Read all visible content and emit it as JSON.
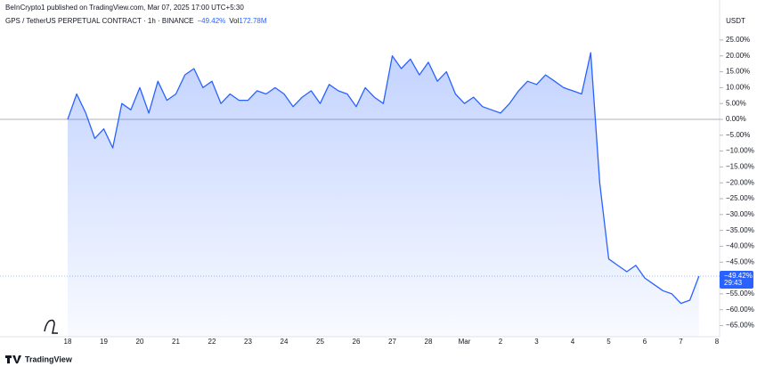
{
  "chart_data": {
    "type": "area",
    "published": "BeInCrypto1 published on TradingView.com, Mar 07, 2025 17:00 UTC+5:30",
    "title": "GPS / TetherUS PERPETUAL CONTRACT · 1h · BINANCE",
    "change_label": "−49.42%",
    "volume_label": "Vol",
    "volume": "172.78M",
    "currency": "USDT",
    "last_value": -49.42,
    "last_label": "−49.42%",
    "countdown": "29:43",
    "brand": "TradingView",
    "color": "#2962ff",
    "categories": [
      "18",
      null,
      null,
      null,
      "19",
      null,
      null,
      null,
      "20",
      null,
      null,
      null,
      "21",
      null,
      null,
      null,
      "22",
      null,
      null,
      null,
      "23",
      null,
      null,
      null,
      "24",
      null,
      null,
      null,
      "25",
      null,
      null,
      null,
      "26",
      null,
      null,
      null,
      "27",
      null,
      null,
      null,
      "28",
      null,
      null,
      null,
      "Mar",
      null,
      null,
      null,
      "2",
      null,
      null,
      null,
      "3",
      null,
      null,
      null,
      "4",
      null,
      null,
      null,
      "5",
      null,
      null,
      null,
      "6",
      null,
      null,
      null,
      "7",
      null,
      null,
      null,
      "8"
    ],
    "values": [
      0,
      8,
      2,
      -6,
      -3,
      -9,
      5,
      3,
      10,
      2,
      12,
      6,
      8,
      14,
      16,
      10,
      12,
      5,
      8,
      6,
      6,
      9,
      8,
      10,
      8,
      4,
      7,
      9,
      5,
      11,
      9,
      8,
      4,
      10,
      7,
      5,
      20,
      16,
      19,
      14,
      18,
      12,
      15,
      8,
      5,
      7,
      4,
      3,
      2,
      5,
      9,
      12,
      11,
      14,
      12,
      10,
      9,
      8,
      21,
      -20,
      -44,
      -46,
      -48,
      -46,
      -50,
      -52,
      -54,
      -55,
      -58,
      -57,
      -49.42,
      null,
      null
    ],
    "ylim": [
      -68.5,
      32
    ],
    "yticks": [
      {
        "value": 25,
        "label": "25.00%"
      },
      {
        "value": 20,
        "label": "20.00%"
      },
      {
        "value": 15,
        "label": "15.00%"
      },
      {
        "value": 10,
        "label": "10.00%"
      },
      {
        "value": 5,
        "label": "5.00%"
      },
      {
        "value": 0,
        "label": "0.00%"
      },
      {
        "value": -5,
        "label": "−5.00%"
      },
      {
        "value": -10,
        "label": "−10.00%"
      },
      {
        "value": -15,
        "label": "−15.00%"
      },
      {
        "value": -20,
        "label": "−20.00%"
      },
      {
        "value": -25,
        "label": "−25.00%"
      },
      {
        "value": -30,
        "label": "−30.00%"
      },
      {
        "value": -35,
        "label": "−35.00%"
      },
      {
        "value": -40,
        "label": "−40.00%"
      },
      {
        "value": -45,
        "label": "−45.00%"
      },
      {
        "value": -55,
        "label": "−55.00%"
      },
      {
        "value": -60,
        "label": "−60.00%"
      },
      {
        "value": -65,
        "label": "−65.00%"
      }
    ]
  }
}
